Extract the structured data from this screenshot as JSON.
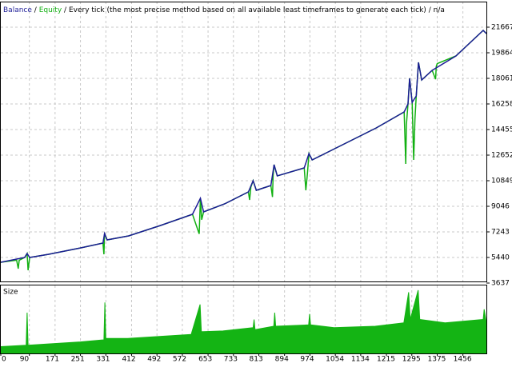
{
  "chart_data": {
    "type": "line",
    "description": "Every tick (the most precise method based on all available least timeframes to generate each tick)",
    "model_note": "n/a",
    "separator": "/",
    "ylim": [
      3637,
      23470
    ],
    "yticks": [
      3637,
      5440,
      7243,
      9046,
      10849,
      12652,
      14455,
      16258,
      18061,
      19864,
      21667
    ],
    "xlim": [
      0,
      1530
    ],
    "xticks": [
      0,
      90,
      171,
      251,
      331,
      412,
      492,
      572,
      653,
      733,
      813,
      894,
      974,
      1054,
      1134,
      1215,
      1295,
      1375,
      1456
    ],
    "grid": true,
    "series": [
      {
        "name": "Equity",
        "color": "#12b012",
        "x": [
          0,
          50,
          55,
          58,
          75,
          83,
          86,
          91,
          151,
          252,
          322,
          325,
          327,
          335,
          403,
          503,
          604,
          625,
          629,
          633,
          639,
          705,
          780,
          784,
          788,
          795,
          805,
          851,
          856,
          858,
          861,
          871,
          956,
          961,
          966,
          971,
          981,
          1057,
          1183,
          1271,
          1276,
          1278,
          1283,
          1288,
          1296,
          1301,
          1305,
          1309,
          1316,
          1326,
          1359,
          1370,
          1372,
          1375,
          1434,
          1520,
          1530
        ],
        "values": [
          5102,
          5250,
          4651,
          5250,
          5440,
          5722,
          4538,
          5440,
          5665,
          6116,
          6454,
          5665,
          7130,
          6680,
          6961,
          7693,
          8482,
          7100,
          9609,
          8100,
          8651,
          9215,
          10060,
          9496,
          10400,
          10849,
          10173,
          10510,
          9700,
          11200,
          11975,
          11186,
          11750,
          10173,
          11300,
          12764,
          12313,
          13159,
          14567,
          15694,
          12031,
          14800,
          16258,
          18061,
          16370,
          12313,
          15200,
          16821,
          19187,
          17948,
          18624,
          18000,
          18900,
          19100,
          19638,
          21441,
          21216
        ]
      },
      {
        "name": "Balance",
        "color": "#1c1c96",
        "x": [
          0,
          75,
          83,
          91,
          151,
          252,
          322,
          327,
          335,
          403,
          503,
          604,
          629,
          639,
          705,
          780,
          795,
          805,
          851,
          861,
          871,
          956,
          971,
          981,
          1057,
          1183,
          1271,
          1283,
          1288,
          1296,
          1309,
          1316,
          1326,
          1359,
          1434,
          1520,
          1530
        ],
        "values": [
          5102,
          5440,
          5722,
          5440,
          5665,
          6116,
          6454,
          7130,
          6680,
          6961,
          7693,
          8482,
          9609,
          8651,
          9215,
          10060,
          10849,
          10173,
          10510,
          11975,
          11186,
          11750,
          12764,
          12313,
          13159,
          14567,
          15694,
          16258,
          18061,
          16370,
          16821,
          19187,
          17948,
          18624,
          19638,
          21441,
          21216
        ]
      }
    ],
    "size_panel": {
      "label": "Size",
      "color": "#14b414",
      "ylim": [
        0,
        1
      ],
      "x": [
        0,
        80,
        83,
        86,
        150,
        250,
        325,
        328,
        331,
        400,
        500,
        600,
        628,
        632,
        700,
        795,
        798,
        801,
        860,
        863,
        866,
        970,
        973,
        976,
        1050,
        1180,
        1270,
        1285,
        1290,
        1315,
        1320,
        1400,
        1520,
        1523,
        1530
      ],
      "values": [
        0.1,
        0.12,
        0.6,
        0.12,
        0.14,
        0.17,
        0.2,
        0.75,
        0.22,
        0.22,
        0.25,
        0.28,
        0.72,
        0.32,
        0.33,
        0.38,
        0.5,
        0.35,
        0.4,
        0.6,
        0.4,
        0.42,
        0.58,
        0.42,
        0.38,
        0.4,
        0.45,
        0.9,
        0.5,
        0.93,
        0.5,
        0.45,
        0.5,
        0.65,
        0.45
      ]
    }
  }
}
